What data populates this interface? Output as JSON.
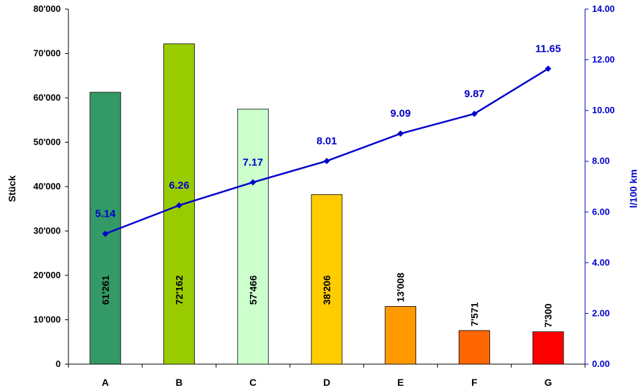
{
  "chart_data": {
    "type": "bar",
    "categories": [
      "A",
      "B",
      "C",
      "D",
      "E",
      "F",
      "G"
    ],
    "series": [
      {
        "type": "bar",
        "axis": "left",
        "values": [
          61261,
          72162,
          57466,
          38206,
          13008,
          7571,
          7300
        ],
        "labels": [
          "61'261",
          "72'162",
          "57'466",
          "38'206",
          "13'008",
          "7'571",
          "7'300"
        ],
        "colors": [
          "#339966",
          "#99cc00",
          "#ccffcc",
          "#ffcc00",
          "#ff9900",
          "#ff6600",
          "#ff0000"
        ]
      },
      {
        "type": "line",
        "axis": "right",
        "values": [
          5.14,
          6.26,
          7.17,
          8.01,
          9.09,
          9.87,
          11.65
        ],
        "labels": [
          "5.14",
          "6.26",
          "7.17",
          "8.01",
          "9.09",
          "9.87",
          "11.65"
        ],
        "color": "#0000cc"
      }
    ],
    "ylabel": "Stück",
    "y2label": "l/100 km",
    "ylim": [
      0,
      80000
    ],
    "y2lim": [
      0,
      14
    ],
    "yticks": [
      0,
      10000,
      20000,
      30000,
      40000,
      50000,
      60000,
      70000,
      80000
    ],
    "ytick_labels": [
      "0",
      "10'000",
      "20'000",
      "30'000",
      "40'000",
      "50'000",
      "60'000",
      "70'000",
      "80'000"
    ],
    "y2ticks": [
      0,
      2,
      4,
      6,
      8,
      10,
      12,
      14
    ],
    "y2tick_labels": [
      "0.00",
      "2.00",
      "4.00",
      "6.00",
      "8.00",
      "10.00",
      "12.00",
      "14.00"
    ],
    "grid": false,
    "legend": "none",
    "title": "",
    "xlabel": ""
  }
}
